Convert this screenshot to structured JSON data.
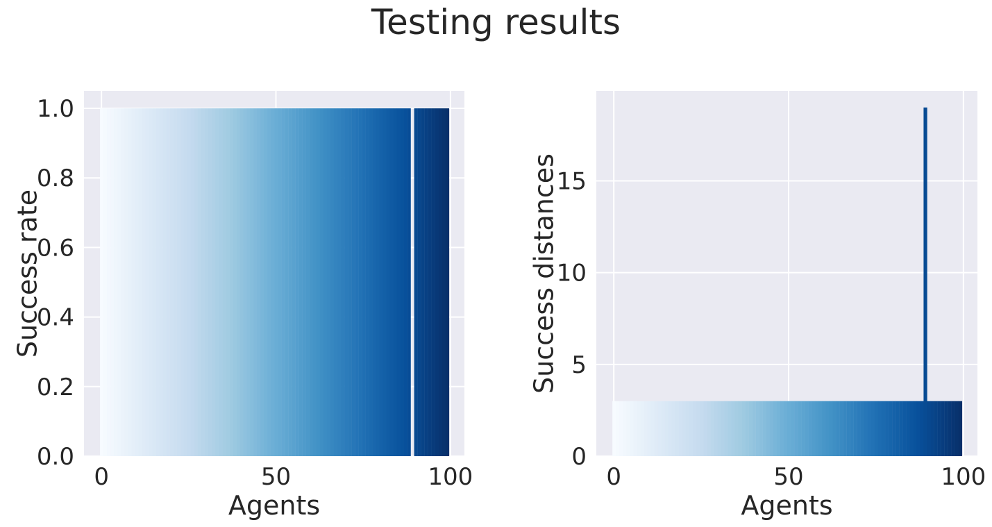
{
  "title": "Testing results",
  "colormap": "Blues",
  "colors": {
    "axes_background": "#eaeaf2",
    "grid": "#ffffff",
    "text": "#262626"
  },
  "chart_data": [
    {
      "type": "bar",
      "xlabel": "Agents",
      "ylabel": "Success rate",
      "xlim": [
        -5,
        104
      ],
      "ylim": [
        0,
        1.05
      ],
      "xticks": [
        0,
        50,
        100
      ],
      "yticks": [
        0.0,
        0.2,
        0.4,
        0.6,
        0.8,
        1.0
      ],
      "ytick_labels": [
        "0.0",
        "0.2",
        "0.4",
        "0.6",
        "0.8",
        "1.0"
      ],
      "grid": true,
      "note_values": "100 agents (0-99), each bar colored by agent index with the Blues colormap; agent 89 has value 0",
      "x_start": 0,
      "values": [
        1,
        1,
        1,
        1,
        1,
        1,
        1,
        1,
        1,
        1,
        1,
        1,
        1,
        1,
        1,
        1,
        1,
        1,
        1,
        1,
        1,
        1,
        1,
        1,
        1,
        1,
        1,
        1,
        1,
        1,
        1,
        1,
        1,
        1,
        1,
        1,
        1,
        1,
        1,
        1,
        1,
        1,
        1,
        1,
        1,
        1,
        1,
        1,
        1,
        1,
        1,
        1,
        1,
        1,
        1,
        1,
        1,
        1,
        1,
        1,
        1,
        1,
        1,
        1,
        1,
        1,
        1,
        1,
        1,
        1,
        1,
        1,
        1,
        1,
        1,
        1,
        1,
        1,
        1,
        1,
        1,
        1,
        1,
        1,
        1,
        1,
        1,
        1,
        1,
        0,
        1,
        1,
        1,
        1,
        1,
        1,
        1,
        1,
        1,
        1
      ]
    },
    {
      "type": "bar",
      "xlabel": "Agents",
      "ylabel": "Success distances",
      "xlim": [
        -5,
        104
      ],
      "ylim": [
        0,
        19.9
      ],
      "xticks": [
        0,
        50,
        100
      ],
      "yticks": [
        0,
        5,
        10,
        15
      ],
      "ytick_labels": [
        "0",
        "5",
        "10",
        "15"
      ],
      "grid": true,
      "x_start": 0,
      "values": [
        3,
        3,
        3,
        3,
        3,
        3,
        3,
        3,
        3,
        3,
        3,
        3,
        3,
        3,
        3,
        3,
        3,
        3,
        3,
        3,
        3,
        3,
        3,
        3,
        3,
        3,
        3,
        3,
        3,
        3,
        3,
        3,
        3,
        3,
        3,
        3,
        3,
        3,
        3,
        3,
        3,
        3,
        3,
        3,
        3,
        3,
        3,
        3,
        3,
        3,
        3,
        3,
        3,
        3,
        3,
        3,
        3,
        3,
        3,
        3,
        3,
        3,
        3,
        3,
        3,
        3,
        3,
        3,
        3,
        3,
        3,
        3,
        3,
        3,
        3,
        3,
        3,
        3,
        3,
        3,
        3,
        3,
        3,
        3,
        3,
        3,
        3,
        3,
        3,
        19,
        3,
        3,
        3,
        3,
        3,
        3,
        3,
        3,
        3,
        3
      ]
    }
  ]
}
